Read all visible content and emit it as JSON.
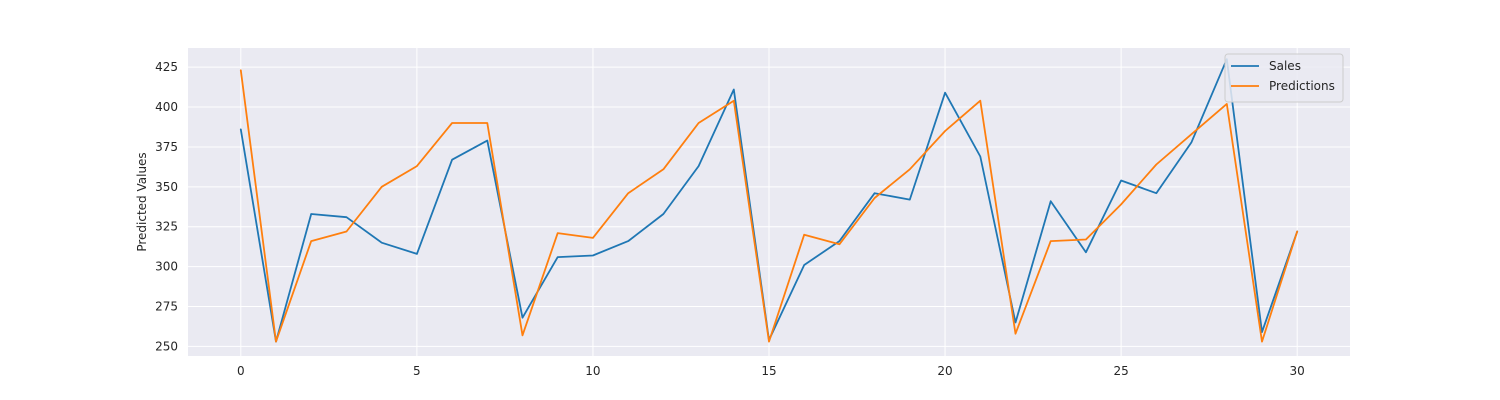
{
  "chart_data": {
    "type": "line",
    "title": "",
    "xlabel": "",
    "ylabel": "Predicted Values",
    "xlim": [
      -1.5,
      31.5
    ],
    "ylim": [
      244,
      437
    ],
    "x_ticks": [
      0,
      5,
      10,
      15,
      20,
      25,
      30
    ],
    "y_ticks": [
      250,
      275,
      300,
      325,
      350,
      375,
      400,
      425
    ],
    "grid": true,
    "legend_position": "top-right",
    "x": [
      0,
      1,
      2,
      3,
      4,
      5,
      6,
      7,
      8,
      9,
      10,
      11,
      12,
      13,
      14,
      15,
      16,
      17,
      18,
      19,
      20,
      21,
      22,
      23,
      24,
      25,
      26,
      27,
      28,
      29,
      30
    ],
    "series": [
      {
        "name": "Sales",
        "color": "#1f77b4",
        "values": [
          386,
          253,
          333,
          331,
          315,
          308,
          367,
          379,
          268,
          306,
          307,
          316,
          333,
          363,
          411,
          254,
          301,
          316,
          346,
          342,
          409,
          369,
          265,
          341,
          309,
          354,
          346,
          378,
          430,
          259,
          322
        ]
      },
      {
        "name": "Predictions",
        "color": "#ff7f0e",
        "values": [
          423,
          253,
          316,
          322,
          350,
          363,
          390,
          390,
          257,
          321,
          318,
          346,
          361,
          390,
          404,
          253,
          320,
          314,
          343,
          361,
          385,
          404,
          258,
          316,
          317,
          339,
          364,
          383,
          402,
          253,
          322
        ]
      }
    ],
    "colors": {
      "plot_background": "#eaeaf2",
      "grid": "#ffffff",
      "text": "#262626"
    }
  }
}
